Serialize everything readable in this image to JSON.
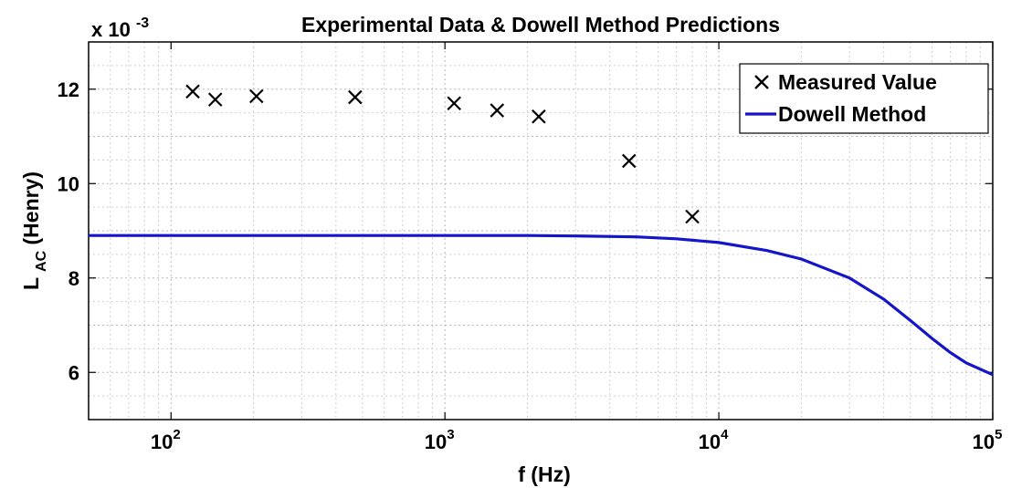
{
  "chart_data": {
    "type": "line",
    "title": "Experimental Data & Dowell Method Predictions",
    "xlabel": "f (Hz)",
    "ylabel_main": "L",
    "ylabel_sub": "AC",
    "ylabel_tail": " (Henry)",
    "y_multiplier_base": "x 10",
    "y_multiplier_exp": "-3",
    "x_scale": "log",
    "xlim": [
      50,
      100000
    ],
    "ylim": [
      5,
      13
    ],
    "x_ticks": [
      100,
      1000,
      10000,
      100000
    ],
    "x_tick_labels": [
      {
        "base": "10",
        "exp": "2"
      },
      {
        "base": "10",
        "exp": "3"
      },
      {
        "base": "10",
        "exp": "4"
      },
      {
        "base": "10",
        "exp": "5"
      }
    ],
    "y_ticks": [
      6,
      8,
      10,
      12
    ],
    "y_tick_labels": [
      "6",
      "8",
      "10",
      "12"
    ],
    "grid": true,
    "legend_position": "top-right",
    "series": [
      {
        "name": "Measured Value",
        "kind": "scatter",
        "marker": "x",
        "color": "#000000",
        "x": [
          120,
          145,
          205,
          470,
          1080,
          1550,
          2200,
          4700,
          8000
        ],
        "y": [
          11.95,
          11.78,
          11.85,
          11.83,
          11.7,
          11.55,
          11.42,
          10.48,
          9.3
        ]
      },
      {
        "name": "Dowell Method",
        "kind": "line",
        "color": "#1414c8",
        "x": [
          50,
          100,
          200,
          500,
          1000,
          2000,
          3000,
          5000,
          7000,
          10000,
          15000,
          20000,
          30000,
          40000,
          50000,
          60000,
          70000,
          80000,
          100000
        ],
        "y": [
          8.9,
          8.9,
          8.9,
          8.9,
          8.9,
          8.9,
          8.89,
          8.87,
          8.83,
          8.75,
          8.58,
          8.4,
          8.0,
          7.55,
          7.1,
          6.72,
          6.42,
          6.2,
          5.95
        ]
      }
    ]
  }
}
